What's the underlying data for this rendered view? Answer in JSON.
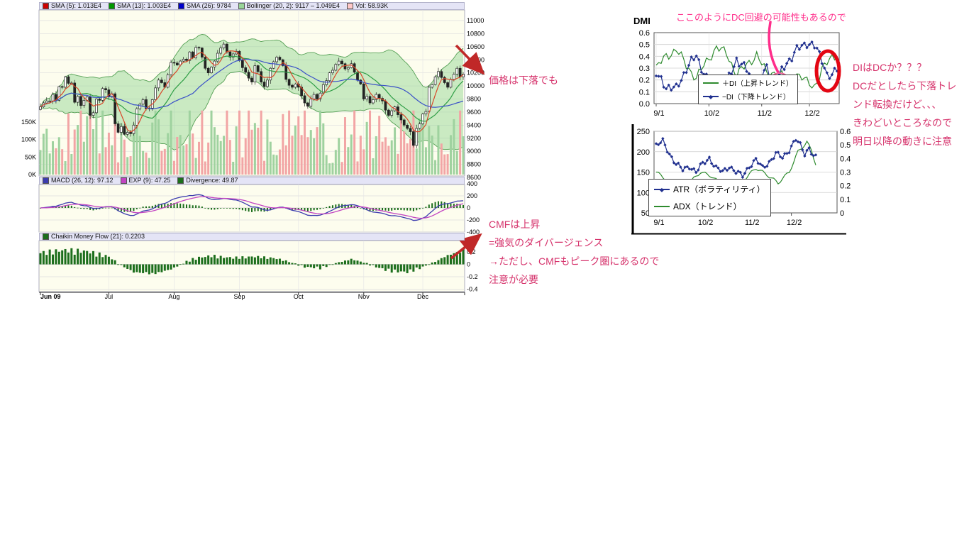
{
  "colors": {
    "annotation_red": "#d6336c",
    "annotation_pink": "#ff2d8a",
    "circle_red": "#e30613",
    "arrow_red": "#c02828",
    "pink_line": "#ff2d8a",
    "pink_circle": "#f06a9e",
    "bollinger_fill": "#8cd28c",
    "up_volume": "#9fd29f",
    "down_volume": "#f2a5a5",
    "sma5": "#d9472a",
    "sma13": "#2f9e46",
    "sma26": "#3a50c8",
    "macd_line": "#3c3cae",
    "exp_line": "#c244c2",
    "divergence": "#1c6e1c",
    "plus_di": "#2e8b2e",
    "minus_di": "#20308f",
    "atr": "#20308f",
    "adx": "#2e8b2e"
  },
  "main_chart": {
    "legend_price": [
      {
        "swatch": "#cc0000",
        "label": "SMA (5): 1.013E4"
      },
      {
        "swatch": "#009900",
        "label": "SMA (13): 1.003E4"
      },
      {
        "swatch": "#0000cc",
        "label": "SMA (26): 9784"
      },
      {
        "swatch": "#99d699",
        "label": "Bollinger (20, 2): 9117 – 1.049E4"
      },
      {
        "swatch": "#ffc8c8",
        "label": "Vol: 58.93K"
      }
    ],
    "legend_macd": [
      {
        "swatch": "#3c3cae",
        "label": "MACD (26, 12): 97.12"
      },
      {
        "swatch": "#c244c2",
        "label": "EXP (9): 47.25"
      },
      {
        "swatch": "#1c6e1c",
        "label": "Divergence: 49.87"
      }
    ],
    "legend_cmf": [
      {
        "swatch": "#1c6e1c",
        "label": "Chaikin Money Flow (21): 0.2203"
      }
    ],
    "price_axis": [
      11000,
      10800,
      10600,
      10400,
      10200,
      10000,
      9800,
      9600,
      9400,
      9200,
      9000,
      8800,
      8600
    ],
    "volume_axis": [
      "150K",
      "100K",
      "50K",
      "0K"
    ],
    "macd_axis": [
      400,
      200,
      0,
      -200,
      -400
    ],
    "cmf_axis": [
      0.4,
      0.2,
      0,
      -0.2,
      -0.4
    ],
    "x_labels": [
      "Jun 09",
      "Jul",
      "Aug",
      "Sep",
      "Oct",
      "Nov",
      "Dec"
    ]
  },
  "dmi_section": {
    "title": "DMI",
    "dmi_y": [
      "0.6",
      "0.5",
      "0.4",
      "0.3",
      "0.2",
      "0.1",
      "0.0"
    ],
    "dmi_x": [
      "9/1",
      "10/2",
      "11/2",
      "12/2"
    ],
    "legend": [
      "＋DI（上昇トレンド）",
      "−DI（下降トレンド）"
    ],
    "atr_y_left": [
      "250",
      "200",
      "150",
      "100",
      "50"
    ],
    "atr_y_right": [
      "0.6",
      "0.5",
      "0.4",
      "0.3",
      "0.2",
      "0.1",
      "0"
    ],
    "atr_x": [
      "9/1",
      "10/2",
      "11/2",
      "12/2"
    ],
    "atr_legend": [
      "ATR（ボラティリティ）",
      "ADX（トレンド）"
    ]
  },
  "annotations": {
    "price_note": "価格は下落でも",
    "cmf_notes": [
      "CMFは上昇",
      "=強気のダイバージェンス",
      "→ただし、CMFもピーク圏にあるので",
      "注意が必要"
    ],
    "dmi_top_note": "ここのようにDC回避の可能性もあるので",
    "dmi_right_notes": [
      "DIはDCか？？？",
      "DCだとしたら下落トレ",
      "ンド転換だけど、、、",
      "きわどいところなので",
      "明日以降の動きに注意"
    ]
  },
  "chart_data": [
    {
      "type": "candlestick",
      "panel": "price",
      "ylim": [
        8600,
        11160
      ],
      "x_labels": [
        "Jun 09",
        "Jul",
        "Aug",
        "Sep",
        "Oct",
        "Nov",
        "Dec"
      ],
      "month_start_index": [
        0,
        22,
        43,
        64,
        83,
        104,
        123
      ],
      "indicators": [
        "SMA(5)",
        "SMA(13)",
        "SMA(26)",
        "Bollinger(20,2)",
        "Volume"
      ],
      "closes": [
        9680,
        9740,
        9770,
        9770,
        9870,
        9780,
        9990,
        9980,
        10140,
        10040,
        10045,
        9750,
        9840,
        9700,
        9780,
        9830,
        9550,
        9590,
        9800,
        9780,
        9960,
        9940,
        9840,
        9880,
        9420,
        9290,
        9380,
        9260,
        9290,
        9270,
        9400,
        9650,
        9720,
        9790,
        9650,
        9660,
        9790,
        9970,
        10090,
        10050,
        9980,
        10170,
        10360,
        10350,
        10320,
        10380,
        10410,
        10390,
        10520,
        10430,
        10590,
        10580,
        10440,
        10270,
        10200,
        10290,
        10380,
        10500,
        10580,
        10640,
        10520,
        10440,
        10490,
        10530,
        10390,
        10280,
        10210,
        10120,
        10060,
        10310,
        10220,
        10060,
        9990,
        10090,
        10270,
        10370,
        10440,
        10400,
        10310,
        10100,
        10010,
        9980,
        10030,
        9980,
        9850,
        9740,
        9690,
        9800,
        9870,
        9800,
        9890,
        10020,
        10080,
        10200,
        10240,
        10330,
        10380,
        10340,
        10260,
        10280,
        10340,
        10210,
        10090,
        10030,
        9800,
        9840,
        9740,
        9790,
        9870,
        9810,
        9770,
        9630,
        9550,
        9620,
        9680,
        9560,
        9480,
        9400,
        9350,
        9300,
        9090,
        9350,
        9420,
        9570,
        9610,
        9980,
        10020,
        10140,
        10220,
        10130,
        10050,
        9980,
        10100,
        10180,
        10270,
        10140,
        10180
      ]
    },
    {
      "type": "line+histogram",
      "panel": "MACD",
      "computed_from": "closes",
      "params": {
        "fast": 12,
        "slow": 26,
        "signal": 9
      },
      "last_values": {
        "macd": 97.12,
        "exp": 47.25,
        "divergence": 49.87
      },
      "ylim": [
        -400,
        400
      ]
    },
    {
      "type": "bar",
      "panel": "Chaikin Money Flow (21)",
      "last_value": 0.2203,
      "ylim": [
        -0.4,
        0.4
      ],
      "anchors": [
        [
          0,
          0.18
        ],
        [
          8,
          0.22
        ],
        [
          15,
          0.2
        ],
        [
          22,
          0.12
        ],
        [
          26,
          -0.02
        ],
        [
          30,
          -0.12
        ],
        [
          36,
          -0.15
        ],
        [
          42,
          -0.08
        ],
        [
          46,
          0.02
        ],
        [
          50,
          0.1
        ],
        [
          55,
          0.13
        ],
        [
          62,
          0.1
        ],
        [
          68,
          0.12
        ],
        [
          75,
          0.1
        ],
        [
          80,
          0.04
        ],
        [
          85,
          -0.04
        ],
        [
          90,
          -0.06
        ],
        [
          95,
          0.02
        ],
        [
          100,
          0.08
        ],
        [
          104,
          0.03
        ],
        [
          108,
          -0.04
        ],
        [
          112,
          -0.1
        ],
        [
          118,
          -0.12
        ],
        [
          122,
          -0.06
        ],
        [
          126,
          0.02
        ],
        [
          130,
          0.12
        ],
        [
          136,
          0.22
        ]
      ]
    },
    {
      "type": "line",
      "panel": "DMI",
      "ylim": [
        0,
        0.6
      ],
      "n": 73,
      "x_labels": [
        "9/1",
        "10/2",
        "11/2",
        "12/2"
      ],
      "x_tick_indices": [
        0,
        21,
        42,
        61
      ],
      "series": [
        {
          "name": "＋DI（上昇トレンド）",
          "anchors": [
            [
              0,
              0.3
            ],
            [
              4,
              0.4
            ],
            [
              8,
              0.46
            ],
            [
              12,
              0.32
            ],
            [
              16,
              0.22
            ],
            [
              20,
              0.35
            ],
            [
              24,
              0.48
            ],
            [
              28,
              0.42
            ],
            [
              32,
              0.25
            ],
            [
              36,
              0.32
            ],
            [
              40,
              0.42
            ],
            [
              44,
              0.25
            ],
            [
              48,
              0.27
            ],
            [
              52,
              0.2
            ],
            [
              56,
              0.25
            ],
            [
              60,
              0.18
            ],
            [
              63,
              0.15
            ],
            [
              66,
              0.28
            ],
            [
              70,
              0.4
            ],
            [
              72,
              0.42
            ]
          ]
        },
        {
          "name": "−DI（下降トレンド）",
          "anchors": [
            [
              0,
              0.24
            ],
            [
              4,
              0.15
            ],
            [
              8,
              0.12
            ],
            [
              12,
              0.3
            ],
            [
              16,
              0.4
            ],
            [
              20,
              0.22
            ],
            [
              24,
              0.1
            ],
            [
              28,
              0.16
            ],
            [
              32,
              0.38
            ],
            [
              36,
              0.28
            ],
            [
              40,
              0.15
            ],
            [
              44,
              0.3
            ],
            [
              48,
              0.19
            ],
            [
              52,
              0.35
            ],
            [
              56,
              0.45
            ],
            [
              60,
              0.52
            ],
            [
              63,
              0.48
            ],
            [
              66,
              0.38
            ],
            [
              68,
              0.25
            ],
            [
              70,
              0.22
            ],
            [
              72,
              0.3
            ]
          ]
        }
      ]
    },
    {
      "type": "line",
      "panel": "ATR/ADX",
      "ylim_left": [
        50,
        250
      ],
      "ylim_right": [
        0,
        0.6
      ],
      "n": 73,
      "x_labels": [
        "9/1",
        "10/2",
        "11/2",
        "12/2"
      ],
      "x_tick_indices": [
        0,
        21,
        42,
        61
      ],
      "series": [
        {
          "name": "ATR（ボラティリティ）",
          "axis": "left",
          "anchors": [
            [
              0,
              215
            ],
            [
              3,
              225
            ],
            [
              6,
              195
            ],
            [
              9,
              170
            ],
            [
              12,
              155
            ],
            [
              15,
              165
            ],
            [
              18,
              150
            ],
            [
              21,
              170
            ],
            [
              24,
              185
            ],
            [
              27,
              160
            ],
            [
              30,
              150
            ],
            [
              33,
              165
            ],
            [
              36,
              150
            ],
            [
              39,
              140
            ],
            [
              42,
              165
            ],
            [
              45,
              180
            ],
            [
              48,
              160
            ],
            [
              51,
              175
            ],
            [
              54,
              195
            ],
            [
              57,
              185
            ],
            [
              60,
              205
            ],
            [
              63,
              230
            ],
            [
              65,
              215
            ],
            [
              67,
              195
            ],
            [
              69,
              210
            ],
            [
              71,
              190
            ],
            [
              72,
              185
            ]
          ]
        },
        {
          "name": "ADX（トレンド）",
          "axis": "right",
          "anchors": [
            [
              0,
              0.3
            ],
            [
              5,
              0.24
            ],
            [
              10,
              0.17
            ],
            [
              15,
              0.22
            ],
            [
              20,
              0.3
            ],
            [
              25,
              0.27
            ],
            [
              30,
              0.2
            ],
            [
              35,
              0.16
            ],
            [
              40,
              0.25
            ],
            [
              45,
              0.33
            ],
            [
              50,
              0.28
            ],
            [
              55,
              0.22
            ],
            [
              60,
              0.3
            ],
            [
              64,
              0.45
            ],
            [
              68,
              0.52
            ],
            [
              70,
              0.46
            ],
            [
              72,
              0.36
            ]
          ]
        }
      ]
    }
  ]
}
